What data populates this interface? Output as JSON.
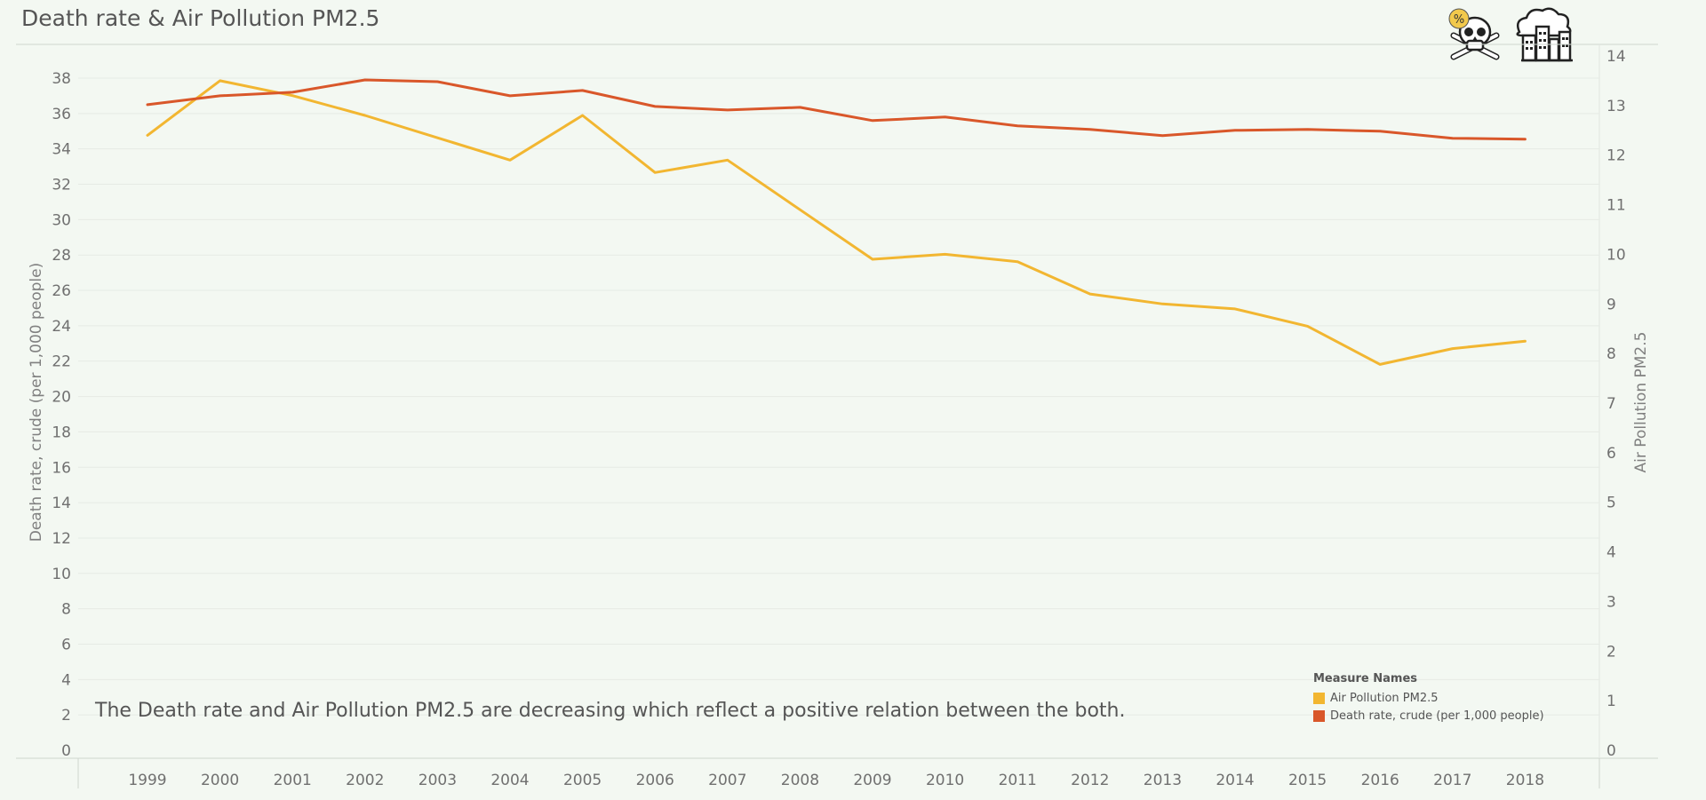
{
  "title": "Death rate & Air Pollution PM2.5",
  "annotation": "The Death rate and Air Pollution PM2.5 are decreasing which reflect a positive relation between the both.",
  "legend": {
    "title": "Measure Names",
    "items": [
      "Air Pollution PM2.5",
      "Death rate, crude (per 1,000 people)"
    ]
  },
  "icons": {
    "left": "skull-crossbones-percent-icon",
    "right": "polluted-city-cloud-icon",
    "badge_text": "%"
  },
  "colors": {
    "pm25": "#f2b631",
    "death_rate": "#d9572a",
    "background": "#f3f8f2",
    "gridline": "#e6ebe5"
  },
  "chart_data": {
    "type": "line",
    "title": "Death rate & Air Pollution PM2.5",
    "x": [
      1999,
      2000,
      2001,
      2002,
      2003,
      2004,
      2005,
      2006,
      2007,
      2008,
      2009,
      2010,
      2011,
      2012,
      2013,
      2014,
      2015,
      2016,
      2017,
      2018
    ],
    "series": [
      {
        "name": "Air Pollution PM2.5",
        "axis": "right",
        "values": [
          12.4,
          13.5,
          13.2,
          12.8,
          12.35,
          11.9,
          12.8,
          11.65,
          11.9,
          10.9,
          9.9,
          10.0,
          9.85,
          9.2,
          9.0,
          8.9,
          8.55,
          7.78,
          8.1,
          8.25
        ]
      },
      {
        "name": "Death rate, crude (per 1,000 people)",
        "axis": "left",
        "values": [
          36.5,
          37.0,
          37.2,
          37.9,
          37.8,
          37.0,
          37.3,
          36.4,
          36.2,
          36.35,
          35.6,
          35.8,
          35.3,
          35.1,
          34.75,
          35.05,
          35.1,
          35.0,
          34.6,
          34.55
        ]
      }
    ],
    "ylabel": "Death rate, crude (per 1,000 people)",
    "ylim": [
      0,
      38
    ],
    "y_ticks": [
      0,
      2,
      4,
      6,
      8,
      10,
      12,
      14,
      16,
      18,
      20,
      22,
      24,
      26,
      28,
      30,
      32,
      34,
      36,
      38
    ],
    "y2label": "Air Pollution PM2.5",
    "y2lim": [
      0,
      14
    ],
    "y2_ticks": [
      0,
      1,
      2,
      3,
      4,
      5,
      6,
      7,
      8,
      9,
      10,
      11,
      12,
      13,
      14
    ],
    "grid": true,
    "legend_position": "bottom-right"
  }
}
